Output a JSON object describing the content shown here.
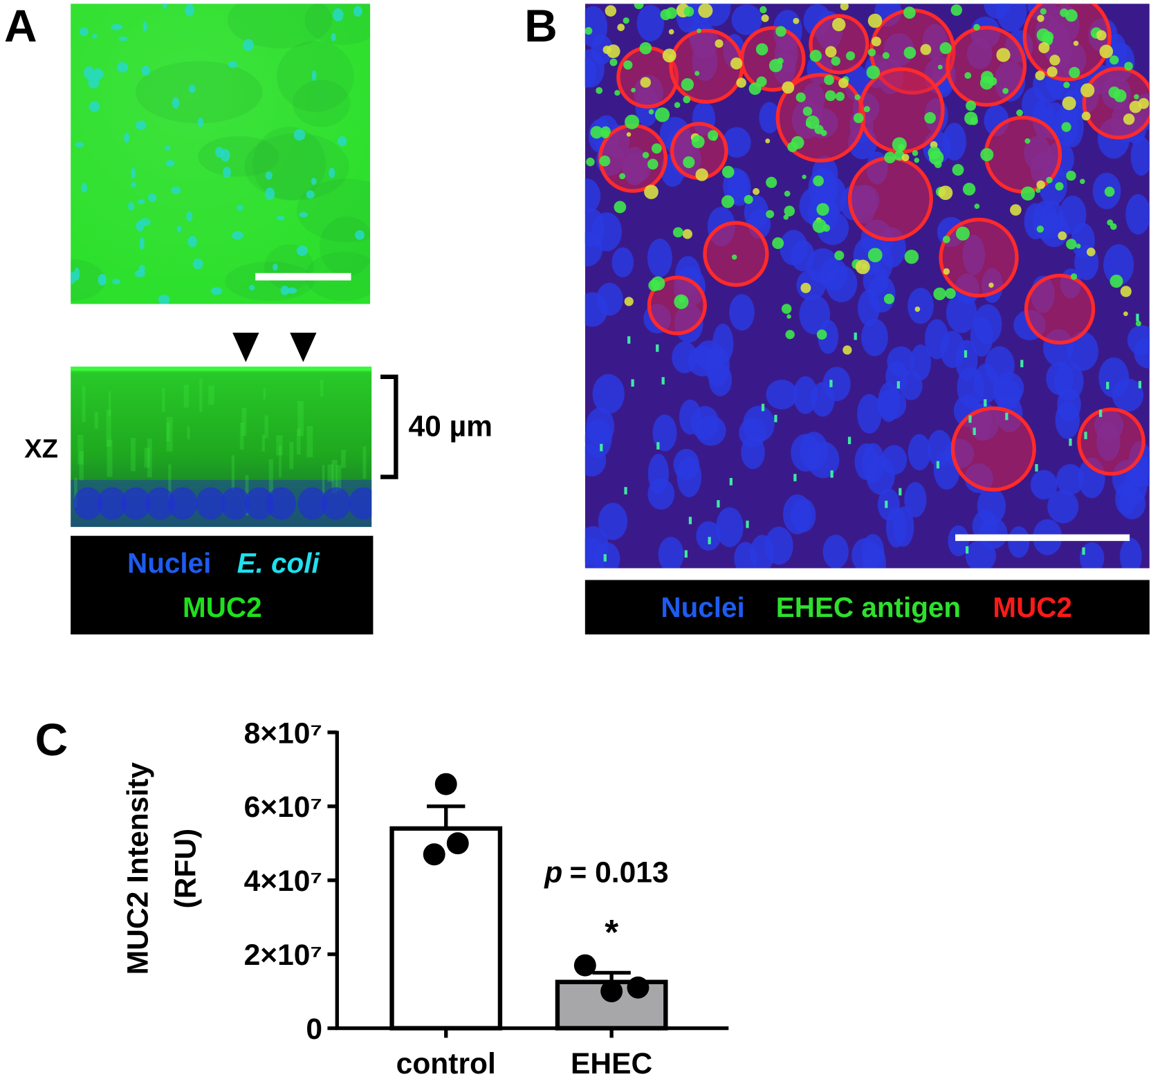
{
  "panel_A": {
    "label": "A",
    "xz_label": "XZ",
    "scale_label": "40 µm",
    "legend": {
      "nuclei": "Nuclei",
      "ecoli": "E. coli",
      "muc2": "MUC2"
    }
  },
  "panel_B": {
    "label": "B",
    "legend": {
      "nuclei": "Nuclei",
      "ehec": "EHEC antigen",
      "muc2": "MUC2"
    }
  },
  "panel_C": {
    "label": "C"
  },
  "chart_data": {
    "type": "bar",
    "ylabel": [
      "MUC2 Intensity",
      "(RFU)"
    ],
    "categories": [
      "control",
      "EHEC"
    ],
    "values": [
      54000000,
      12500000
    ],
    "errors": [
      6000000,
      2500000
    ],
    "points": [
      [
        66000000,
        47000000,
        50000000
      ],
      [
        17000000,
        10000000,
        11000000
      ]
    ],
    "colors": [
      "#ffffff",
      "#a7a7a9"
    ],
    "ylim": [
      0,
      80000000
    ],
    "yticks": [
      0,
      {
        "value": 20000000,
        "label": "2×10⁷"
      },
      {
        "value": 40000000,
        "label": "4×10⁷"
      },
      {
        "value": 60000000,
        "label": "6×10⁷"
      },
      {
        "value": 80000000,
        "label": "8×10⁷"
      }
    ],
    "annotation": {
      "p_symbol": "p",
      "p_value": "= 0.013",
      "significance": "*"
    }
  }
}
